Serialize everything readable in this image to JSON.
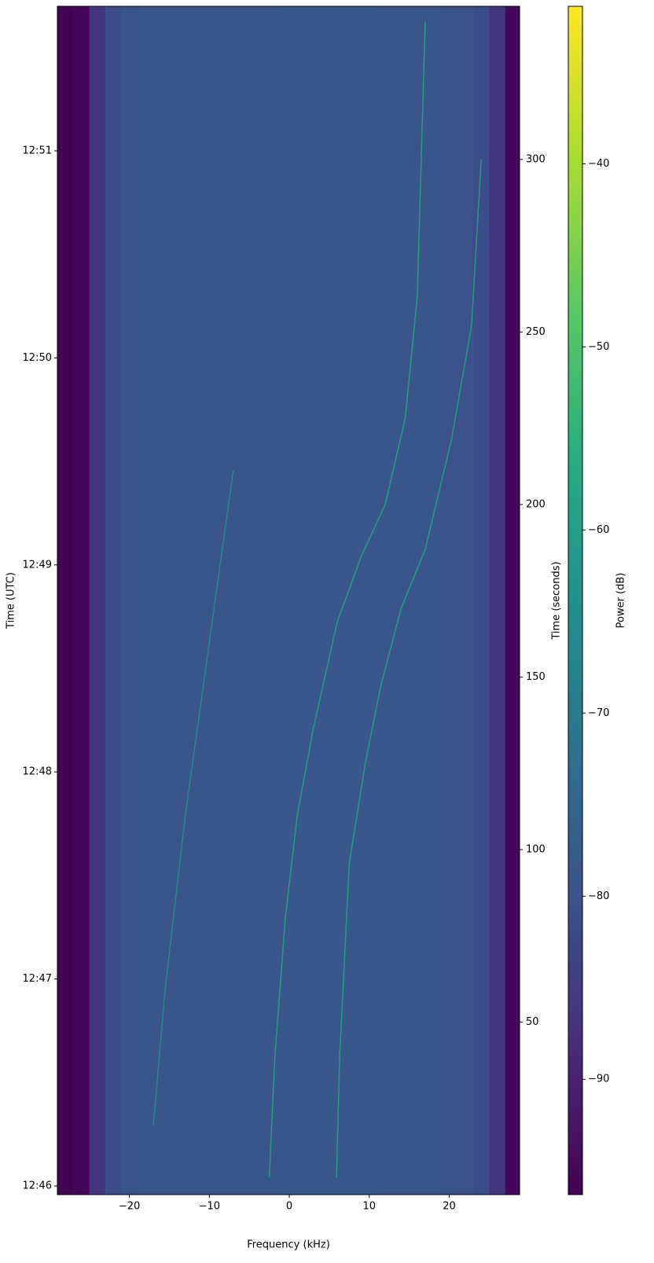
{
  "chart_data": {
    "type": "spectrogram",
    "xlabel": "Frequency (kHz)",
    "ylabel": "Time (UTC)",
    "y2label": "Time (seconds)",
    "colorbar_label": "Power (dB)",
    "xlim": [
      -29,
      28.8
    ],
    "xticks": [
      {
        "value": -20,
        "label": "−20"
      },
      {
        "value": -10,
        "label": "−10"
      },
      0,
      10,
      20
    ],
    "ylim": [
      0,
      344.4
    ],
    "yticks": [
      {
        "value": 2.5,
        "label": "12:46"
      },
      {
        "value": 62.5,
        "label": "12:47"
      },
      {
        "value": 122.5,
        "label": "12:48"
      },
      {
        "value": 182.5,
        "label": "12:49"
      },
      {
        "value": 242.5,
        "label": "12:50"
      },
      {
        "value": 302.5,
        "label": "12:51"
      }
    ],
    "y2lim": [
      0,
      344.4
    ],
    "y2ticks": [
      50,
      100,
      150,
      200,
      250,
      300
    ],
    "clim": [
      -96.3,
      -31.4
    ],
    "cticks": [
      {
        "value": -40,
        "label": "−40"
      },
      {
        "value": -50,
        "label": "−50"
      },
      {
        "value": -60,
        "label": "−60"
      },
      {
        "value": -70,
        "label": "−70"
      },
      {
        "value": -80,
        "label": "−80"
      },
      {
        "value": -90,
        "label": "−90"
      }
    ],
    "colormap": "viridis",
    "bins": [
      -29,
      -27,
      -25,
      -23,
      -21,
      -19,
      -17,
      -15,
      -13,
      -11,
      -9,
      -7,
      -5,
      -3,
      -1,
      1,
      3,
      5,
      7,
      9,
      11,
      13,
      15,
      17,
      19,
      21,
      23,
      25,
      27,
      29
    ],
    "power": [
      -96,
      -95,
      -86,
      -81,
      -79.5,
      -79,
      -79,
      -79,
      -79,
      -79,
      -79,
      -79,
      -79,
      -79,
      -78.5,
      -78.5,
      -78.5,
      -78.5,
      -78.5,
      -78.5,
      -79,
      -79,
      -79,
      -79,
      -79.5,
      -80,
      -81,
      -86,
      -95
    ],
    "tracks": [
      {
        "color": "#22a884",
        "x": [
          -2.5,
          -1.8,
          -0.5,
          1,
          3,
          6,
          9,
          12,
          14.5,
          16,
          17
        ],
        "y": [
          5,
          40,
          80,
          110,
          135,
          166,
          185,
          200,
          225,
          260,
          340
        ]
      },
      {
        "color": "#22a884",
        "x": [
          5.9,
          6.3,
          7.5,
          9.5,
          11.5,
          14,
          17,
          20.3,
          22.8,
          24
        ],
        "y": [
          5,
          40,
          96,
          125,
          148,
          170,
          187,
          219,
          252,
          300
        ]
      },
      {
        "color": "#21918c",
        "x": [
          -17,
          -15.5,
          -13,
          -10,
          -7
        ],
        "y": [
          20,
          60,
          110,
          160,
          210
        ]
      }
    ]
  }
}
